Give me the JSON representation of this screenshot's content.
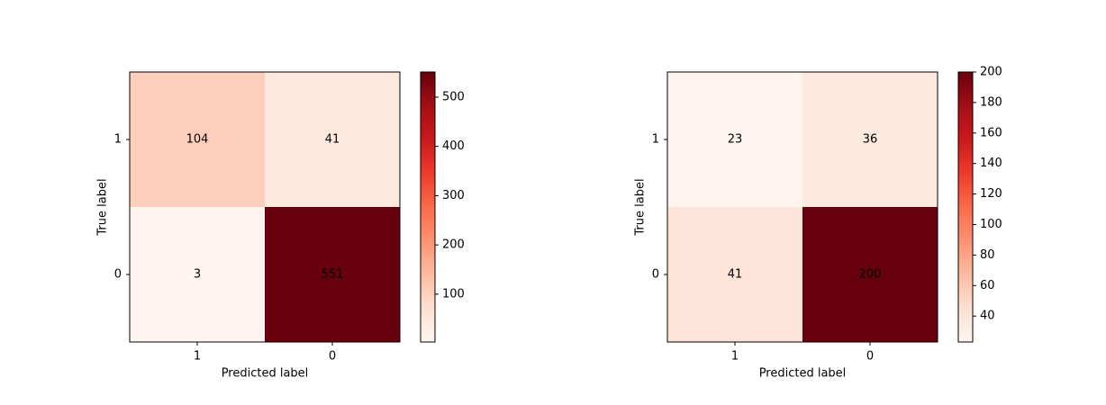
{
  "chart_data": [
    {
      "type": "heatmap",
      "x_label": "Predicted label",
      "y_label": "True label",
      "x_categories": [
        "1",
        "0"
      ],
      "y_categories": [
        "1",
        "0"
      ],
      "values": [
        [
          104,
          41
        ],
        [
          3,
          551
        ]
      ],
      "colormap": "Reds",
      "clim": [
        3,
        551
      ],
      "cticks": [
        100,
        200,
        300,
        400,
        500
      ]
    },
    {
      "type": "heatmap",
      "x_label": "Predicted label",
      "y_label": "True label",
      "x_categories": [
        "1",
        "0"
      ],
      "y_categories": [
        "1",
        "0"
      ],
      "values": [
        [
          23,
          36
        ],
        [
          41,
          200
        ]
      ],
      "colormap": "Reds",
      "clim": [
        23,
        200
      ],
      "cticks": [
        40,
        60,
        80,
        100,
        120,
        140,
        160,
        180,
        200
      ]
    }
  ]
}
